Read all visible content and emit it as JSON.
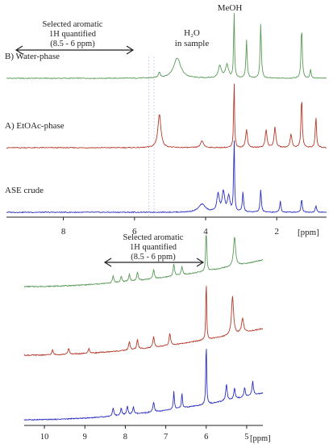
{
  "figure": {
    "top_panel": {
      "annotations": {
        "region_line1": "Selected aromatic",
        "region_line2": "1H quantified",
        "region_line3": "(8.5 - 6 ppm)",
        "water_line1": "H₂O",
        "water_line2": "in sample",
        "methanol": "MeOH"
      }
    },
    "bottom_panel": {
      "annotations": {
        "region_line1": "Selected aromatic",
        "region_line2": "1H quantified",
        "region_line3": "(8.5 - 6 ppm)"
      }
    }
  },
  "chart_data": [
    {
      "type": "line",
      "panel": "top",
      "x_unit_label": "[ppm]",
      "xlim": [
        9.6,
        0.6
      ],
      "x_reversed": true,
      "x_ticks": [
        8,
        6,
        4,
        2
      ],
      "grid": false,
      "series": [
        {
          "name": "B) Water-phase",
          "color": "#5a9a58",
          "baseline_offset": 2,
          "peaks": [
            {
              "ppm": 4.8,
              "height": 0.9,
              "width": 0.12
            },
            {
              "ppm": 3.6,
              "height": 0.55,
              "width": 0.05
            },
            {
              "ppm": 3.4,
              "height": 0.6,
              "width": 0.05
            },
            {
              "ppm": 3.2,
              "height": 3.0,
              "width": 0.015
            },
            {
              "ppm": 2.85,
              "height": 1.7,
              "width": 0.02
            },
            {
              "ppm": 2.45,
              "height": 2.4,
              "width": 0.02
            },
            {
              "ppm": 1.3,
              "height": 2.3,
              "width": 0.02
            },
            {
              "ppm": 1.05,
              "height": 0.4,
              "width": 0.02
            },
            {
              "ppm": 5.3,
              "height": 0.25,
              "width": 0.03
            }
          ]
        },
        {
          "name": "A) EtOAc-phase",
          "color": "#b43a2a",
          "baseline_offset": 1,
          "peaks": [
            {
              "ppm": 5.3,
              "height": 1.5,
              "width": 0.05
            },
            {
              "ppm": 3.2,
              "height": 3.0,
              "width": 0.015
            },
            {
              "ppm": 2.85,
              "height": 0.8,
              "width": 0.03
            },
            {
              "ppm": 2.3,
              "height": 0.8,
              "width": 0.03
            },
            {
              "ppm": 2.05,
              "height": 0.9,
              "width": 0.03
            },
            {
              "ppm": 1.6,
              "height": 0.6,
              "width": 0.03
            },
            {
              "ppm": 1.3,
              "height": 2.3,
              "width": 0.02
            },
            {
              "ppm": 0.9,
              "height": 1.4,
              "width": 0.02
            },
            {
              "ppm": 4.1,
              "height": 0.3,
              "width": 0.05
            }
          ]
        },
        {
          "name": "ASE crude",
          "color": "#2b2fc0",
          "baseline_offset": 0,
          "peaks": [
            {
              "ppm": 4.1,
              "height": 0.35,
              "width": 0.12
            },
            {
              "ppm": 3.65,
              "height": 0.8,
              "width": 0.04
            },
            {
              "ppm": 3.5,
              "height": 0.9,
              "width": 0.04
            },
            {
              "ppm": 3.35,
              "height": 0.7,
              "width": 0.04
            },
            {
              "ppm": 3.2,
              "height": 3.3,
              "width": 0.015
            },
            {
              "ppm": 2.95,
              "height": 0.9,
              "width": 0.02
            },
            {
              "ppm": 2.45,
              "height": 1.0,
              "width": 0.02
            },
            {
              "ppm": 1.9,
              "height": 0.5,
              "width": 0.02
            },
            {
              "ppm": 1.3,
              "height": 0.6,
              "width": 0.02
            },
            {
              "ppm": 0.9,
              "height": 0.3,
              "width": 0.02
            }
          ]
        }
      ]
    },
    {
      "type": "line",
      "panel": "bottom",
      "x_unit_label": "[ppm]",
      "xlim": [
        10.5,
        4.6
      ],
      "x_reversed": true,
      "x_ticks": [
        10,
        9,
        8,
        7,
        6,
        5
      ],
      "grid": false,
      "series": [
        {
          "color": "#5a9a58",
          "baseline_offset": 2,
          "peaks": [
            {
              "ppm": 8.3,
              "height": 0.3,
              "width": 0.02
            },
            {
              "ppm": 8.1,
              "height": 0.25,
              "width": 0.02
            },
            {
              "ppm": 7.9,
              "height": 0.3,
              "width": 0.02
            },
            {
              "ppm": 7.7,
              "height": 0.35,
              "width": 0.02
            },
            {
              "ppm": 7.3,
              "height": 0.4,
              "width": 0.02
            },
            {
              "ppm": 6.8,
              "height": 0.5,
              "width": 0.02
            },
            {
              "ppm": 6.6,
              "height": 0.35,
              "width": 0.02
            },
            {
              "ppm": 6.0,
              "height": 2.5,
              "width": 0.012
            },
            {
              "ppm": 5.3,
              "height": 1.2,
              "width": 0.03
            }
          ]
        },
        {
          "color": "#b43a2a",
          "baseline_offset": 1,
          "peaks": [
            {
              "ppm": 9.8,
              "height": 0.2,
              "width": 0.02
            },
            {
              "ppm": 9.4,
              "height": 0.25,
              "width": 0.02
            },
            {
              "ppm": 8.9,
              "height": 0.2,
              "width": 0.02
            },
            {
              "ppm": 7.9,
              "height": 0.35,
              "width": 0.02
            },
            {
              "ppm": 7.7,
              "height": 0.4,
              "width": 0.02
            },
            {
              "ppm": 7.3,
              "height": 0.45,
              "width": 0.02
            },
            {
              "ppm": 6.9,
              "height": 0.5,
              "width": 0.02
            },
            {
              "ppm": 6.0,
              "height": 2.5,
              "width": 0.012
            },
            {
              "ppm": 5.35,
              "height": 1.6,
              "width": 0.03
            },
            {
              "ppm": 5.1,
              "height": 0.6,
              "width": 0.03
            }
          ]
        },
        {
          "color": "#2b2fc0",
          "baseline_offset": 0,
          "peaks": [
            {
              "ppm": 8.3,
              "height": 0.35,
              "width": 0.02
            },
            {
              "ppm": 8.1,
              "height": 0.3,
              "width": 0.02
            },
            {
              "ppm": 7.95,
              "height": 0.35,
              "width": 0.02
            },
            {
              "ppm": 7.8,
              "height": 0.3,
              "width": 0.02
            },
            {
              "ppm": 7.3,
              "height": 0.4,
              "width": 0.02
            },
            {
              "ppm": 6.8,
              "height": 0.75,
              "width": 0.015
            },
            {
              "ppm": 6.6,
              "height": 0.6,
              "width": 0.015
            },
            {
              "ppm": 6.0,
              "height": 2.6,
              "width": 0.012
            },
            {
              "ppm": 5.5,
              "height": 0.7,
              "width": 0.02
            },
            {
              "ppm": 5.3,
              "height": 0.45,
              "width": 0.02
            },
            {
              "ppm": 5.05,
              "height": 0.4,
              "width": 0.02
            },
            {
              "ppm": 4.85,
              "height": 0.6,
              "width": 0.02
            }
          ]
        }
      ]
    }
  ]
}
